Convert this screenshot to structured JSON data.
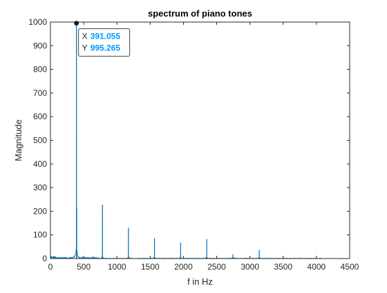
{
  "chart_data": {
    "type": "line",
    "title": "spectrum of piano tones",
    "xlabel": "f in Hz",
    "ylabel": "Magnitude",
    "xlim": [
      0,
      4500
    ],
    "ylim": [
      0,
      1000
    ],
    "xticks": [
      0,
      500,
      1000,
      1500,
      2000,
      2500,
      3000,
      3500,
      4000,
      4500
    ],
    "xtick_labels": [
      "0",
      "500",
      "1000",
      "1500",
      "2000",
      "2500",
      "3000",
      "3500",
      "4000",
      "4500"
    ],
    "yticks": [
      0,
      100,
      200,
      300,
      400,
      500,
      600,
      700,
      800,
      900,
      1000
    ],
    "ytick_labels": [
      "0",
      "100",
      "200",
      "300",
      "400",
      "500",
      "600",
      "700",
      "800",
      "900",
      "1000"
    ],
    "grid": false,
    "series": [
      {
        "color": "#0072bd",
        "peaks": [
          {
            "x": 391.055,
            "y": 995.265
          },
          {
            "x": 395,
            "y": 210
          },
          {
            "x": 782,
            "y": 227
          },
          {
            "x": 1173,
            "y": 130
          },
          {
            "x": 1565,
            "y": 86
          },
          {
            "x": 1958,
            "y": 67
          },
          {
            "x": 2350,
            "y": 82
          },
          {
            "x": 2745,
            "y": 17
          },
          {
            "x": 3140,
            "y": 36
          }
        ],
        "x_max": 4090
      }
    ],
    "datatip": {
      "x_label": "X",
      "x_value": "391.055",
      "y_label": "Y",
      "y_value": "995.265",
      "value_color": "#0099ff"
    }
  }
}
